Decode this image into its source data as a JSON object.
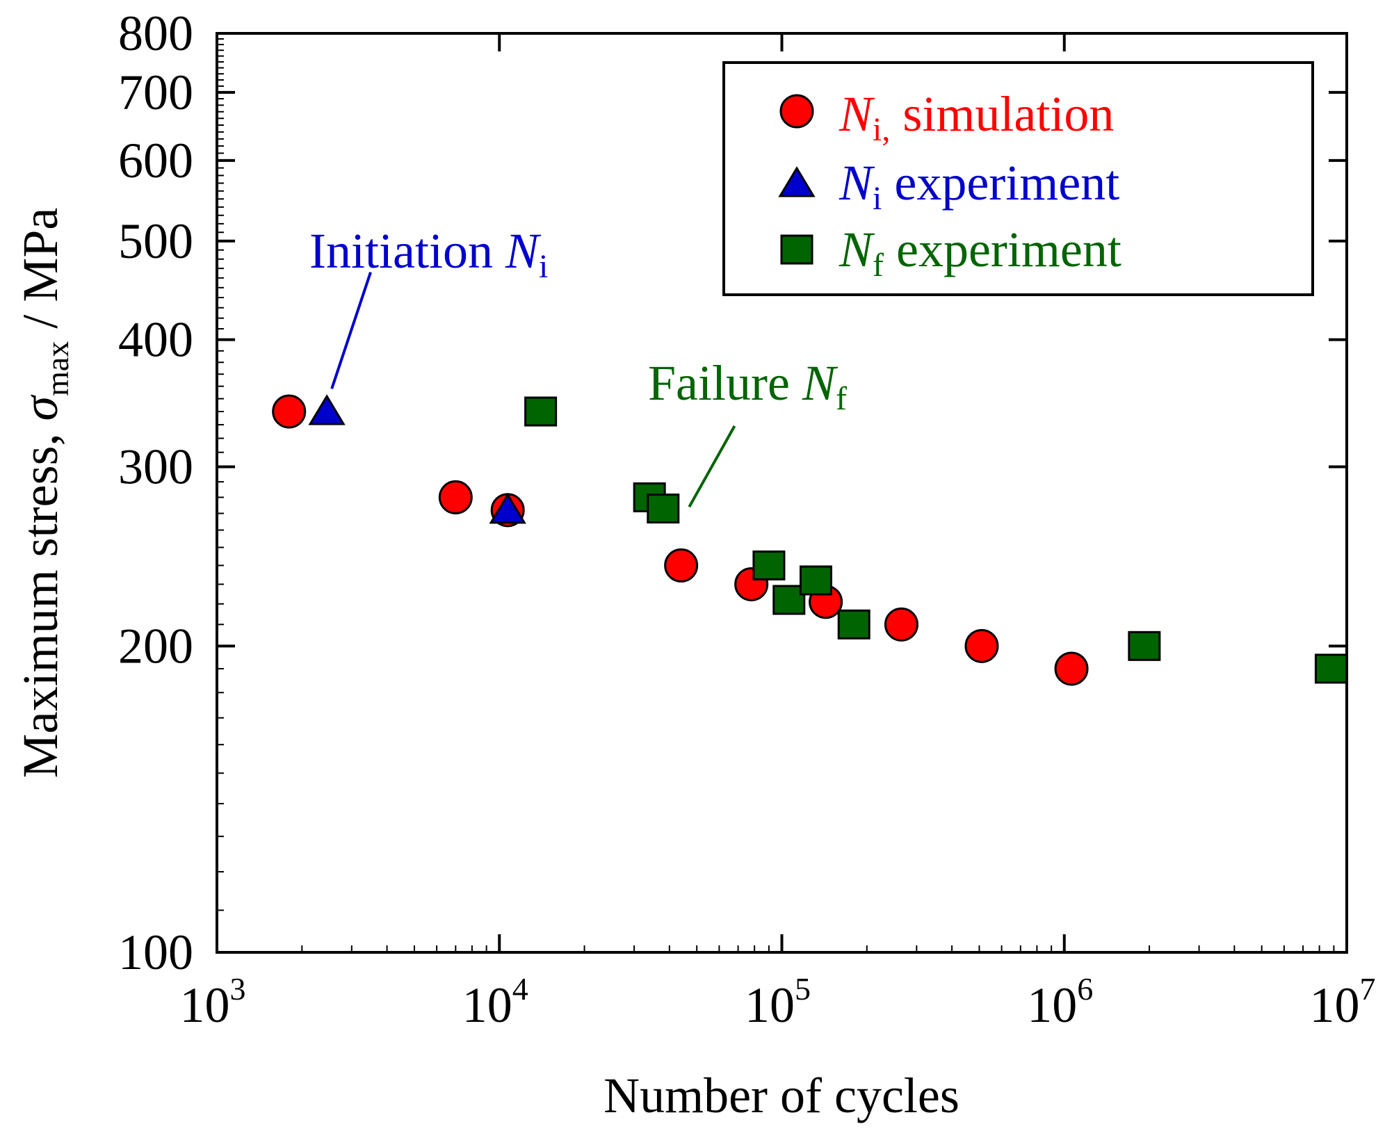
{
  "chart_data": {
    "type": "scatter",
    "x_scale": "log",
    "y_scale": "log",
    "xlim": [
      1000,
      10000000
    ],
    "ylim": [
      100,
      800
    ],
    "xlabel": "Number of cycles",
    "ylabel": {
      "prefix": "Maximum stress,  ",
      "symbol": "σ",
      "subscript": "max",
      "suffix": " / MPa"
    },
    "x_ticks": [
      {
        "base": "10",
        "exp": "3"
      },
      {
        "base": "10",
        "exp": "4"
      },
      {
        "base": "10",
        "exp": "5"
      },
      {
        "base": "10",
        "exp": "6"
      },
      {
        "base": "10",
        "exp": "7"
      }
    ],
    "y_ticks": [
      "100",
      "200",
      "300",
      "400",
      "500",
      "600",
      "700",
      "800"
    ],
    "y_tick_values": [
      100,
      200,
      300,
      400,
      500,
      600,
      700,
      800
    ],
    "legend_position": "top-right",
    "series": [
      {
        "key": "sim",
        "legend_symbol": "N",
        "legend_sub": "i,",
        "legend_text": " simulation",
        "color": "#ff0000",
        "marker": "circle",
        "points": [
          {
            "x": 1800,
            "y": 340
          },
          {
            "x": 7000,
            "y": 280
          },
          {
            "x": 10700,
            "y": 272
          },
          {
            "x": 44000,
            "y": 240
          },
          {
            "x": 78000,
            "y": 230
          },
          {
            "x": 143000,
            "y": 221
          },
          {
            "x": 265000,
            "y": 210
          },
          {
            "x": 510000,
            "y": 200
          },
          {
            "x": 1060000,
            "y": 190
          }
        ]
      },
      {
        "key": "ni_exp",
        "legend_symbol": "N",
        "legend_sub": "i",
        "legend_text": " experiment",
        "color": "#0000cc",
        "marker": "triangle",
        "points": [
          {
            "x": 2450,
            "y": 340
          },
          {
            "x": 10700,
            "y": 272
          }
        ]
      },
      {
        "key": "nf_exp",
        "legend_symbol": "N",
        "legend_sub": "f",
        "legend_text": " experiment",
        "color": "#006400",
        "marker": "square",
        "points": [
          {
            "x": 14000,
            "y": 340
          },
          {
            "x": 34000,
            "y": 280
          },
          {
            "x": 38000,
            "y": 273
          },
          {
            "x": 90000,
            "y": 240
          },
          {
            "x": 106000,
            "y": 222
          },
          {
            "x": 132000,
            "y": 232
          },
          {
            "x": 180000,
            "y": 210
          },
          {
            "x": 1920000,
            "y": 200
          },
          {
            "x": 8800000,
            "y": 190
          }
        ]
      }
    ],
    "annotations": [
      {
        "key": "init",
        "text": "Initiation ",
        "symbol": "N",
        "sub": "i",
        "color": "#0000cc",
        "arrow_to": {
          "x": 2550,
          "y": 358
        },
        "arrow_from": {
          "x": 3500,
          "y": 466
        }
      },
      {
        "key": "fail",
        "text": "Failure ",
        "symbol": "N",
        "sub": "f",
        "color": "#006400",
        "arrow_to": {
          "x": 47000,
          "y": 274
        },
        "arrow_from": {
          "x": 68000,
          "y": 329
        }
      }
    ]
  }
}
